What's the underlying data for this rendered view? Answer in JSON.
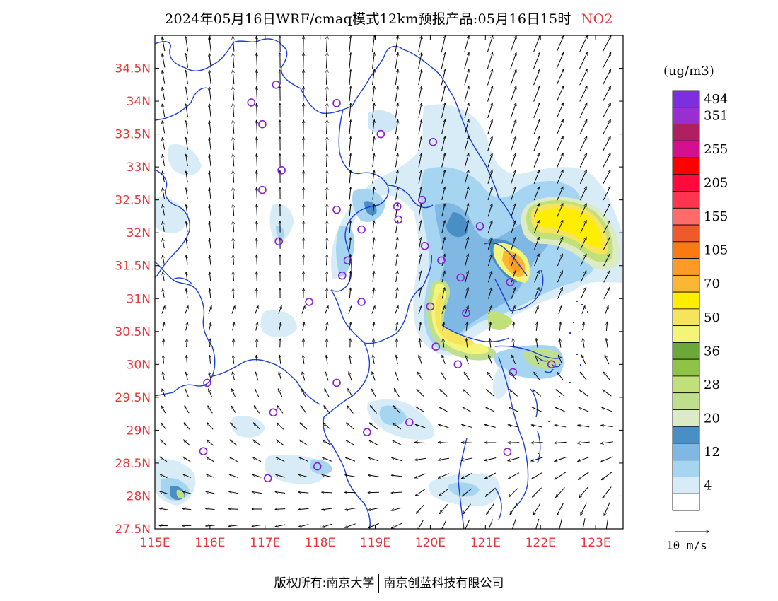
{
  "title": {
    "main": "2024年05月16日WRF/cmaq模式12km预报产品:05月16日15时",
    "pollutant": "NO2"
  },
  "legend": {
    "unit": "(ug/m3)",
    "bins": [
      {
        "label": "",
        "color": "#ffffff"
      },
      {
        "label": "4",
        "color": "#d8ecf8"
      },
      {
        "label": "",
        "color": "#a6d5f2"
      },
      {
        "label": "12",
        "color": "#7fb8e3"
      },
      {
        "label": "",
        "color": "#4a8ec6"
      },
      {
        "label": "20",
        "color": "#dcebc4"
      },
      {
        "label": "",
        "color": "#c0df8e"
      },
      {
        "label": "28",
        "color": "#c2e07a"
      },
      {
        "label": "",
        "color": "#8fc345"
      },
      {
        "label": "36",
        "color": "#6ca73a"
      },
      {
        "label": "",
        "color": "#f2f578"
      },
      {
        "label": "50",
        "color": "#f6e45c"
      },
      {
        "label": "",
        "color": "#ffee00"
      },
      {
        "label": "70",
        "color": "#fbb733"
      },
      {
        "label": "",
        "color": "#fd9a28"
      },
      {
        "label": "105",
        "color": "#f97a10"
      },
      {
        "label": "",
        "color": "#ee5a2a"
      },
      {
        "label": "155",
        "color": "#fd6b6b"
      },
      {
        "label": "",
        "color": "#ff3550"
      },
      {
        "label": "205",
        "color": "#ff0a3c"
      },
      {
        "label": "",
        "color": "#ff0000"
      },
      {
        "label": "255",
        "color": "#d4108e"
      },
      {
        "label": "",
        "color": "#b02060"
      },
      {
        "label": "351",
        "color": "#9a2fd0"
      },
      {
        "label": "494",
        "color": "#7d2fe0"
      }
    ]
  },
  "axes": {
    "lon_labels": [
      "115E",
      "116E",
      "117E",
      "118E",
      "119E",
      "120E",
      "121E",
      "122E",
      "123E"
    ],
    "lat_labels": [
      "27.5N",
      "28N",
      "28.5N",
      "29N",
      "29.5N",
      "30N",
      "30.5N",
      "31N",
      "31.5N",
      "32N",
      "32.5N",
      "33N",
      "33.5N",
      "34N",
      "34.5N"
    ],
    "lon_range": [
      115,
      123.5
    ],
    "lat_range": [
      27.5,
      35
    ],
    "label_color": "#e8383c"
  },
  "wind_ref": {
    "label": "10 m/s"
  },
  "footer": {
    "left": "版权所有:南京大学",
    "right": "南京创蓝科技有限公司"
  },
  "stations": [
    [
      117.2,
      34.25
    ],
    [
      116.75,
      33.98
    ],
    [
      116.95,
      33.65
    ],
    [
      118.3,
      33.97
    ],
    [
      119.1,
      33.5
    ],
    [
      120.05,
      33.38
    ],
    [
      117.3,
      32.95
    ],
    [
      116.95,
      32.65
    ],
    [
      118.3,
      32.35
    ],
    [
      117.25,
      31.87
    ],
    [
      118.75,
      32.05
    ],
    [
      119.4,
      32.4
    ],
    [
      119.42,
      32.2
    ],
    [
      119.85,
      32.5
    ],
    [
      120.9,
      32.1
    ],
    [
      119.9,
      31.8
    ],
    [
      120.2,
      31.58
    ],
    [
      120.55,
      31.32
    ],
    [
      118.4,
      31.35
    ],
    [
      118.5,
      31.58
    ],
    [
      117.8,
      30.95
    ],
    [
      118.75,
      30.95
    ],
    [
      120.0,
      30.88
    ],
    [
      120.65,
      30.78
    ],
    [
      121.45,
      31.25
    ],
    [
      120.1,
      30.27
    ],
    [
      120.5,
      30.0
    ],
    [
      121.5,
      29.88
    ],
    [
      122.2,
      30.0
    ],
    [
      115.95,
      29.72
    ],
    [
      118.3,
      29.72
    ],
    [
      117.15,
      29.27
    ],
    [
      118.85,
      28.97
    ],
    [
      119.62,
      29.12
    ],
    [
      115.88,
      28.68
    ],
    [
      117.95,
      28.45
    ],
    [
      117.05,
      28.27
    ],
    [
      121.4,
      28.67
    ]
  ]
}
